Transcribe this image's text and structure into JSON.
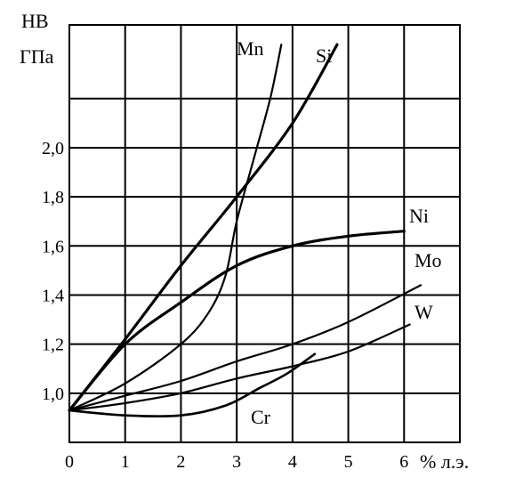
{
  "chart_data": {
    "type": "line",
    "title": "",
    "ylabel_lines": [
      "HB",
      "ГПа"
    ],
    "xlabel": "% л.э.",
    "xlim": [
      0,
      7
    ],
    "ylim": [
      0.8,
      2.5
    ],
    "x_ticks": [
      0,
      1,
      2,
      3,
      4,
      5,
      6
    ],
    "x_tick_labels": [
      "0",
      "1",
      "2",
      "3",
      "4",
      "5",
      "6"
    ],
    "y_ticks": [
      1.0,
      1.2,
      1.4,
      1.6,
      1.8,
      2.0
    ],
    "y_tick_labels": [
      "1,0",
      "1,2",
      "1,4",
      "1,6",
      "1,8",
      "2,0"
    ],
    "grid": true,
    "series": [
      {
        "name": "Mn",
        "x": [
          0,
          1,
          2,
          2.5,
          2.8,
          3.0,
          3.3,
          3.6,
          3.8
        ],
        "y": [
          0.93,
          1.04,
          1.2,
          1.33,
          1.48,
          1.7,
          1.95,
          2.2,
          2.42
        ]
      },
      {
        "name": "Si",
        "x": [
          0,
          1,
          2,
          3,
          4,
          4.8
        ],
        "y": [
          0.93,
          1.22,
          1.52,
          1.8,
          2.1,
          2.42
        ]
      },
      {
        "name": "Ni",
        "x": [
          0,
          1,
          2,
          3,
          4,
          5,
          6
        ],
        "y": [
          0.93,
          1.2,
          1.37,
          1.52,
          1.6,
          1.64,
          1.66
        ]
      },
      {
        "name": "Mo",
        "x": [
          0,
          1,
          2,
          3,
          4,
          5,
          6.3
        ],
        "y": [
          0.93,
          0.99,
          1.05,
          1.13,
          1.2,
          1.29,
          1.44
        ]
      },
      {
        "name": "W",
        "x": [
          0,
          1,
          2,
          3,
          4,
          5,
          6.1
        ],
        "y": [
          0.93,
          0.96,
          1.0,
          1.06,
          1.11,
          1.17,
          1.28
        ]
      },
      {
        "name": "Cr",
        "x": [
          0,
          1,
          2,
          2.8,
          3.4,
          3.9,
          4.4
        ],
        "y": [
          0.93,
          0.91,
          0.91,
          0.95,
          1.02,
          1.08,
          1.16
        ]
      }
    ]
  }
}
